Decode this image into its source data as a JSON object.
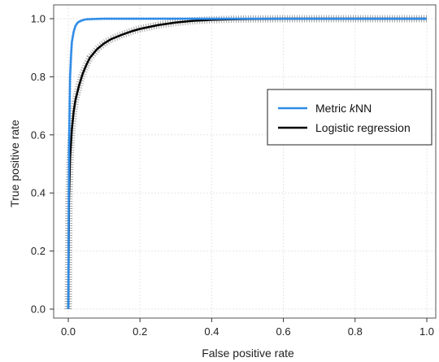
{
  "chart_data": {
    "type": "line",
    "xlabel": "False positive rate",
    "ylabel": "True positive rate",
    "xlim": [
      0,
      1
    ],
    "ylim": [
      0,
      1
    ],
    "x_ticks": [
      "0.0",
      "0.2",
      "0.4",
      "0.6",
      "0.8",
      "1.0"
    ],
    "y_ticks": [
      "0.0",
      "0.2",
      "0.4",
      "0.6",
      "0.8",
      "1.0"
    ],
    "grid": true,
    "legend_position": "right",
    "series": [
      {
        "name": "Metric kNN",
        "legend_parts": [
          "Metric ",
          "k",
          "NN"
        ],
        "color": "#2f8be6",
        "x": [
          0,
          0.002,
          0.005,
          0.008,
          0.01,
          0.015,
          0.02,
          0.025,
          0.03,
          0.04,
          0.05,
          0.07,
          0.1,
          0.2,
          0.5,
          1.0
        ],
        "y": [
          0,
          0.55,
          0.8,
          0.88,
          0.92,
          0.955,
          0.975,
          0.985,
          0.99,
          0.995,
          0.998,
          0.999,
          1.0,
          1.0,
          1.0,
          1.0
        ]
      },
      {
        "name": "Logistic regression",
        "color": "#000000",
        "x": [
          0,
          0.002,
          0.005,
          0.01,
          0.015,
          0.02,
          0.03,
          0.04,
          0.05,
          0.06,
          0.08,
          0.1,
          0.12,
          0.15,
          0.18,
          0.2,
          0.25,
          0.3,
          0.35,
          0.4,
          0.45,
          0.5,
          0.6,
          0.8,
          1.0
        ],
        "y": [
          0,
          0.38,
          0.52,
          0.62,
          0.68,
          0.72,
          0.77,
          0.81,
          0.84,
          0.865,
          0.895,
          0.915,
          0.93,
          0.945,
          0.958,
          0.965,
          0.978,
          0.987,
          0.993,
          0.996,
          0.998,
          0.999,
          1.0,
          1.0,
          1.0
        ]
      }
    ]
  }
}
